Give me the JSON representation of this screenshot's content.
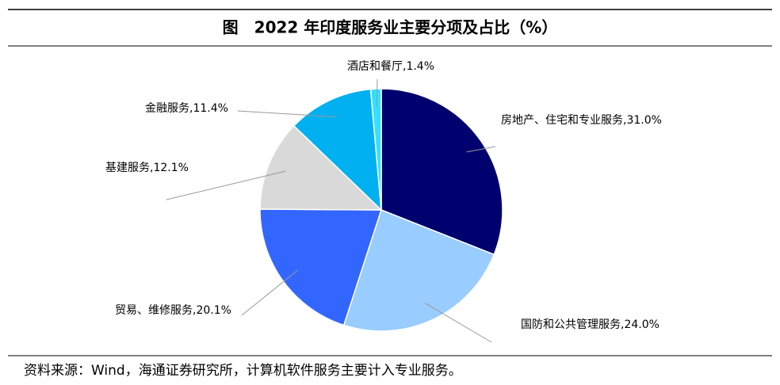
{
  "chart_data": {
    "type": "pie",
    "title": "图　2022 年印度服务业主要分项及占比（%）",
    "categories": [
      "房地产、住宅和专业服务",
      "国防和公共管理服务",
      "贸易、维修服务",
      "基建服务",
      "金融服务",
      "酒店和餐厅"
    ],
    "values": [
      31.0,
      24.0,
      20.1,
      12.1,
      11.4,
      1.4
    ],
    "value_labels": [
      "31.0%",
      "24.0%",
      "20.1%",
      "12.1%",
      "11.4%",
      "1.4%"
    ],
    "label_separator": ",",
    "colors": [
      "#00006e",
      "#99ccff",
      "#3366ff",
      "#d9d9d9",
      "#00b0f0",
      "#33e0ff"
    ],
    "source": "资料来源：Wind，海通证券研究所，计算机软件服务主要计入专业服务。"
  }
}
